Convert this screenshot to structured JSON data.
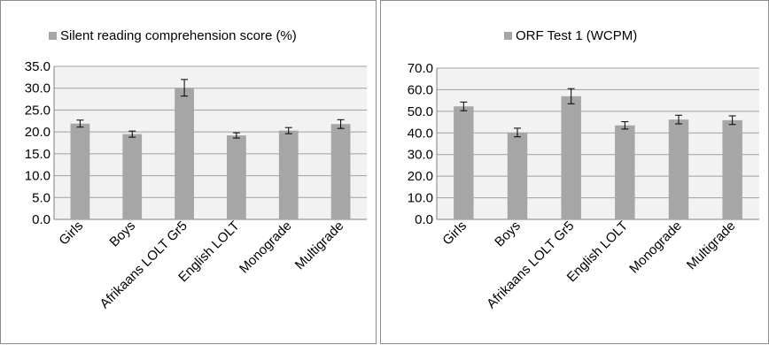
{
  "chart_data": [
    {
      "type": "bar",
      "title": "",
      "legend": [
        "Silent reading comprehension score (%)"
      ],
      "legend_position": "top",
      "categories": [
        "Girls",
        "Boys",
        "Afrikaans LOLT Gr5",
        "English LOLT",
        "Monograde",
        "Multigrade"
      ],
      "series": [
        {
          "name": "Silent reading comprehension score (%)",
          "values": [
            21.9,
            19.5,
            30.1,
            19.2,
            20.3,
            21.8
          ],
          "error_low": [
            21.1,
            18.8,
            28.2,
            18.6,
            19.6,
            20.8
          ],
          "error_high": [
            22.7,
            20.2,
            32.0,
            19.8,
            21.0,
            22.8
          ],
          "color": "#a6a6a6"
        }
      ],
      "ylim": [
        0,
        35
      ],
      "yticks": [
        "0.0",
        "5.0",
        "10.0",
        "15.0",
        "20.0",
        "25.0",
        "30.0",
        "35.0"
      ],
      "grid": true,
      "plot_background": "#f2f2f2"
    },
    {
      "type": "bar",
      "title": "",
      "legend": [
        "ORF Test 1 (WCPM)"
      ],
      "legend_position": "top",
      "categories": [
        "Girls",
        "Boys",
        "Afrikaans LOLT Gr5",
        "English LOLT",
        "Monograde",
        "Multigrade"
      ],
      "series": [
        {
          "name": "ORF Test 1 (WCPM)",
          "values": [
            52.3,
            40.2,
            57.0,
            43.5,
            46.2,
            45.9
          ],
          "error_low": [
            50.3,
            38.2,
            53.5,
            41.8,
            44.2,
            43.9
          ],
          "error_high": [
            54.3,
            42.2,
            60.5,
            45.2,
            48.2,
            47.9
          ],
          "color": "#a6a6a6"
        }
      ],
      "ylim": [
        0,
        70
      ],
      "yticks": [
        "0.0",
        "10.0",
        "20.0",
        "30.0",
        "40.0",
        "50.0",
        "60.0",
        "70.0"
      ],
      "grid": true,
      "plot_background": "#f2f2f2"
    }
  ]
}
